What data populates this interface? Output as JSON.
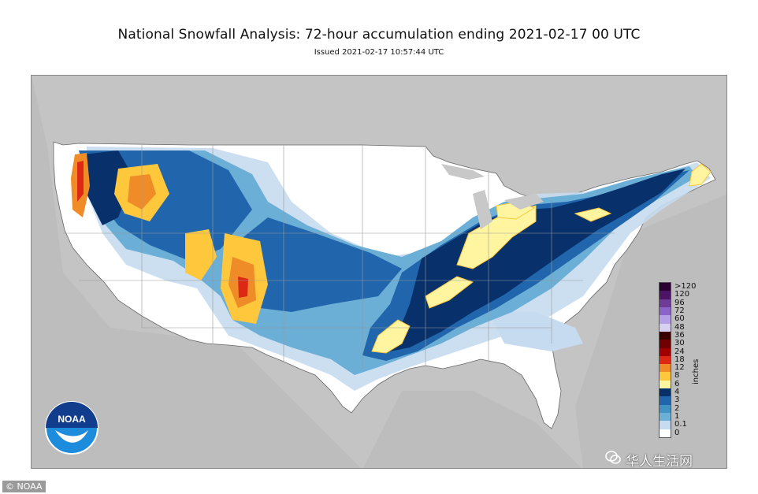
{
  "header": {
    "title": "National Snowfall Analysis: 72-hour accumulation ending 2021-02-17 00 UTC",
    "issued": "Issued 2021-02-17 10:57:44 UTC"
  },
  "legend": {
    "units": "inches",
    "entries": [
      {
        "label": ">120",
        "color": "#2b0032"
      },
      {
        "label": "120",
        "color": "#4c1464"
      },
      {
        "label": "96",
        "color": "#6e3c96"
      },
      {
        "label": "72",
        "color": "#8c64c8"
      },
      {
        "label": "60",
        "color": "#b4a0e6"
      },
      {
        "label": "48",
        "color": "#d8d0f0"
      },
      {
        "label": "36",
        "color": "#3a0000"
      },
      {
        "label": "30",
        "color": "#6e0000"
      },
      {
        "label": "24",
        "color": "#a00000"
      },
      {
        "label": "18",
        "color": "#dc2814"
      },
      {
        "label": "12",
        "color": "#f08c28"
      },
      {
        "label": "8",
        "color": "#ffc83c"
      },
      {
        "label": "6",
        "color": "#fff5a0"
      },
      {
        "label": "4",
        "color": "#08306b"
      },
      {
        "label": "3",
        "color": "#2166ac"
      },
      {
        "label": "2",
        "color": "#4292c6"
      },
      {
        "label": "1",
        "color": "#6baed6"
      },
      {
        "label": "0.1",
        "color": "#c6dbef"
      },
      {
        "label": "0",
        "color": "#ffffff"
      }
    ]
  },
  "logo": {
    "text": "NOAA",
    "colors": {
      "top": "#123c8c",
      "bottom": "#1e8cdc"
    }
  },
  "credit": "© NOAA",
  "watermark": {
    "text": "华人生活网",
    "icon": "wechat-icon"
  },
  "colors": {
    "land_outside": "#c8c8c8",
    "water": "#c8c8c8",
    "us_land": "#ffffff",
    "border": "#888888"
  }
}
